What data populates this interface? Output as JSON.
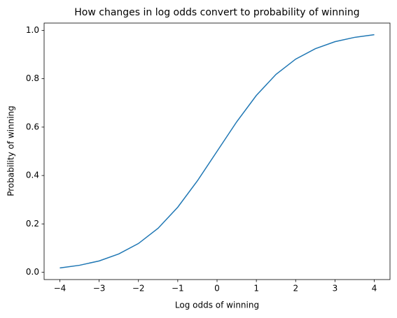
{
  "chart_data": {
    "type": "line",
    "title": "How changes in log odds convert to probability of winning",
    "x_label": "Log odds of winning",
    "y_label": "Probability of winning",
    "x": [
      -4,
      -3.5,
      -3,
      -2.5,
      -2,
      -1.5,
      -1,
      -0.5,
      0,
      0.5,
      1,
      1.5,
      2,
      2.5,
      3,
      3.5,
      4
    ],
    "series": [
      {
        "color": "#1f77b4",
        "values": [
          0.018,
          0.029,
          0.047,
          0.076,
          0.119,
          0.182,
          0.269,
          0.378,
          0.5,
          0.622,
          0.731,
          0.818,
          0.881,
          0.924,
          0.953,
          0.971,
          0.982
        ]
      }
    ],
    "xlim": [
      -4.4,
      4.4
    ],
    "ylim": [
      -0.03,
      1.03
    ],
    "xticks": [
      {
        "value": -4,
        "label": "−4"
      },
      {
        "value": -3,
        "label": "−3"
      },
      {
        "value": -2,
        "label": "−2"
      },
      {
        "value": -1,
        "label": "−1"
      },
      0,
      1,
      2,
      3,
      4
    ],
    "yticks": [
      {
        "value": 0,
        "label": "0.0"
      },
      0.2,
      0.4,
      0.6,
      0.8,
      {
        "value": 1,
        "label": "1.0"
      }
    ],
    "grid": false
  }
}
